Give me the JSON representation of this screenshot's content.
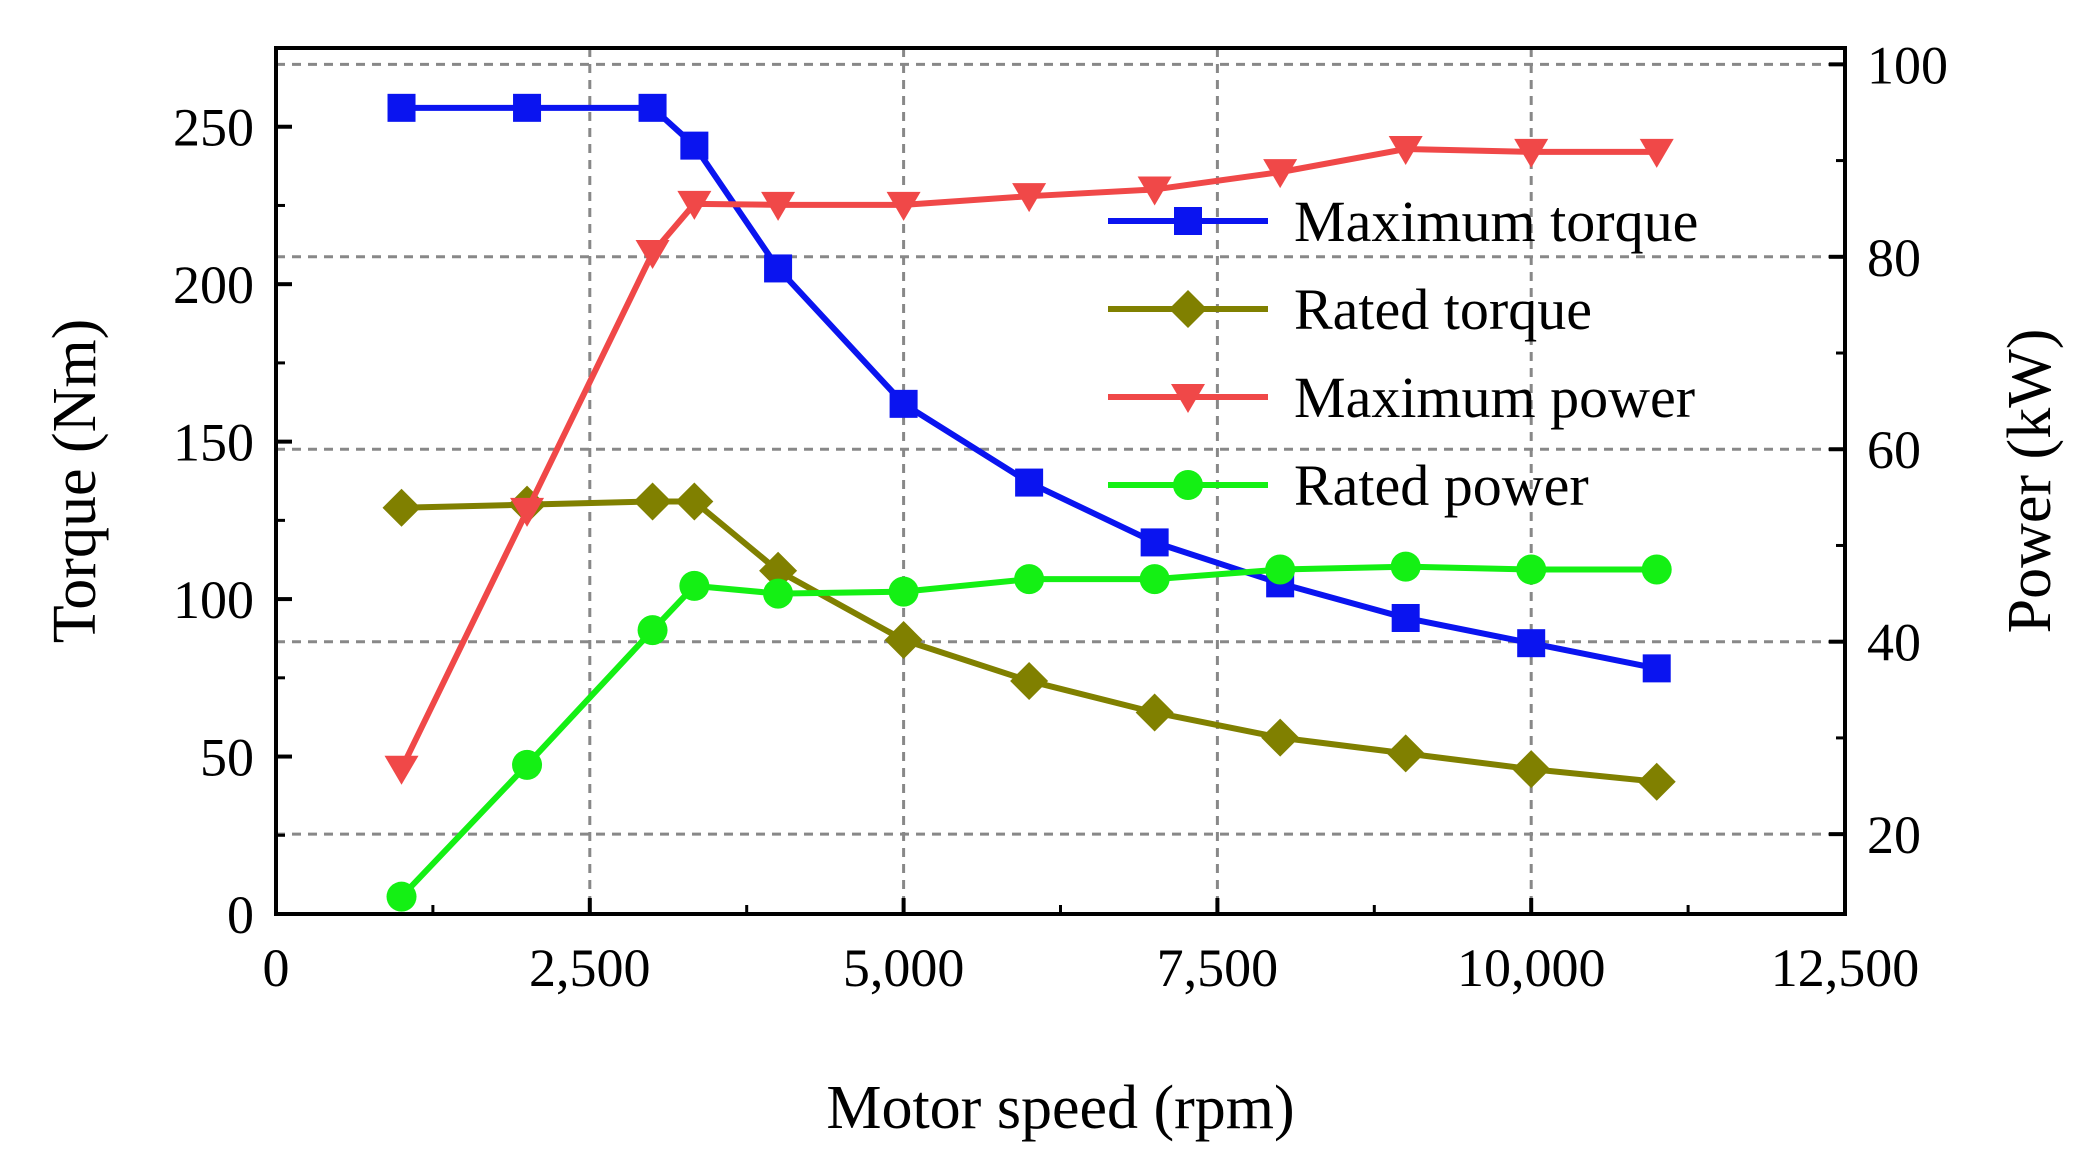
{
  "chart_data": {
    "type": "line",
    "title": "",
    "xlabel": "Motor speed (rpm)",
    "ylabel_left": "Torque (Nm)",
    "ylabel_right": "Power (kW)",
    "xlim": [
      0,
      12500
    ],
    "ylim_left": [
      0,
      275
    ],
    "ylim_right": [
      11.7,
      101.7
    ],
    "x_ticks": [
      0,
      2500,
      5000,
      7500,
      10000,
      12500
    ],
    "x_tick_labels": [
      "0",
      "2,500",
      "5,000",
      "7,500",
      "10,000",
      "12,500"
    ],
    "y_left_ticks": [
      0,
      50,
      100,
      150,
      200,
      250
    ],
    "y_left_tick_labels": [
      "0",
      "50",
      "100",
      "150",
      "200",
      "250"
    ],
    "y_right_ticks": [
      20,
      40,
      60,
      80,
      100
    ],
    "y_right_tick_labels": [
      "20",
      "40",
      "60",
      "80",
      "100"
    ],
    "grid": true,
    "legend_position": "top-right",
    "series": [
      {
        "name": "Maximum torque",
        "axis": "left",
        "marker": "square",
        "color": "#0a14f0",
        "x": [
          1000,
          2000,
          3000,
          3333,
          4000,
          5000,
          6000,
          7000,
          8000,
          9000,
          10000,
          11000
        ],
        "y": [
          256,
          256,
          256,
          244,
          205,
          162,
          137,
          118,
          105,
          94,
          86,
          78
        ]
      },
      {
        "name": "Rated torque",
        "axis": "left",
        "marker": "diamond",
        "color": "#808000",
        "x": [
          1000,
          2000,
          3000,
          3333,
          4000,
          5000,
          6000,
          7000,
          8000,
          9000,
          10000,
          11000
        ],
        "y": [
          129,
          130,
          131,
          131,
          109,
          87,
          74,
          64,
          56,
          51,
          46,
          42
        ]
      },
      {
        "name": "Maximum power",
        "axis": "right",
        "marker": "triangle-down",
        "color": "#f04848",
        "x": [
          1000,
          2000,
          3000,
          3333,
          4000,
          5000,
          6000,
          7000,
          8000,
          9000,
          10000,
          11000
        ],
        "y": [
          26.8,
          53.6,
          80.4,
          85.5,
          85.4,
          85.4,
          86.3,
          87.0,
          88.8,
          91.2,
          90.9,
          90.9
        ]
      },
      {
        "name": "Rated power",
        "axis": "right",
        "marker": "circle",
        "color": "#14f014",
        "x": [
          1000,
          2000,
          3000,
          3333,
          4000,
          5000,
          6000,
          7000,
          8000,
          9000,
          10000,
          11000
        ],
        "y": [
          13.5,
          27.2,
          41.2,
          45.8,
          45.0,
          45.2,
          46.5,
          46.5,
          47.5,
          47.8,
          47.5,
          47.5
        ]
      }
    ]
  }
}
